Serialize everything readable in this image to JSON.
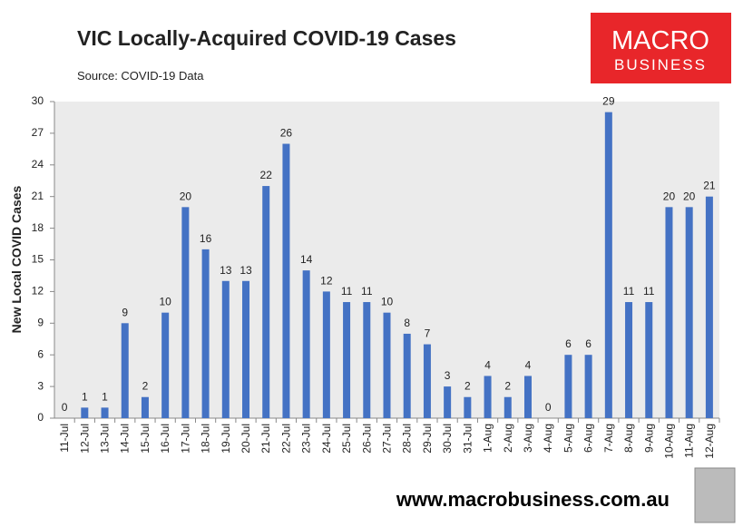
{
  "chart_data": {
    "type": "bar",
    "title": "VIC Locally-Acquired COVID-19 Cases",
    "subtitle": "Source: COVID-19 Data",
    "y_label": "New Local COVID Cases",
    "categories": [
      "11-Jul",
      "12-Jul",
      "13-Jul",
      "14-Jul",
      "15-Jul",
      "16-Jul",
      "17-Jul",
      "18-Jul",
      "19-Jul",
      "20-Jul",
      "21-Jul",
      "22-Jul",
      "23-Jul",
      "24-Jul",
      "25-Jul",
      "26-Jul",
      "27-Jul",
      "28-Jul",
      "29-Jul",
      "30-Jul",
      "31-Jul",
      "1-Aug",
      "2-Aug",
      "3-Aug",
      "4-Aug",
      "5-Aug",
      "6-Aug",
      "7-Aug",
      "8-Aug",
      "9-Aug",
      "10-Aug",
      "11-Aug",
      "12-Aug"
    ],
    "values": [
      0,
      1,
      1,
      9,
      2,
      10,
      20,
      16,
      13,
      13,
      22,
      26,
      14,
      12,
      11,
      11,
      10,
      8,
      7,
      3,
      2,
      4,
      2,
      4,
      0,
      6,
      6,
      29,
      11,
      11,
      20,
      20,
      21
    ],
    "color": "#4472c4",
    "ylim": [
      0,
      30
    ],
    "yticks": [
      0,
      3,
      6,
      9,
      12,
      15,
      18,
      21,
      24,
      27,
      30
    ],
    "grid": false
  },
  "logo": {
    "line1": "MACRO",
    "line2": "BUSINESS"
  },
  "footer": "www.macrobusiness.com.au"
}
